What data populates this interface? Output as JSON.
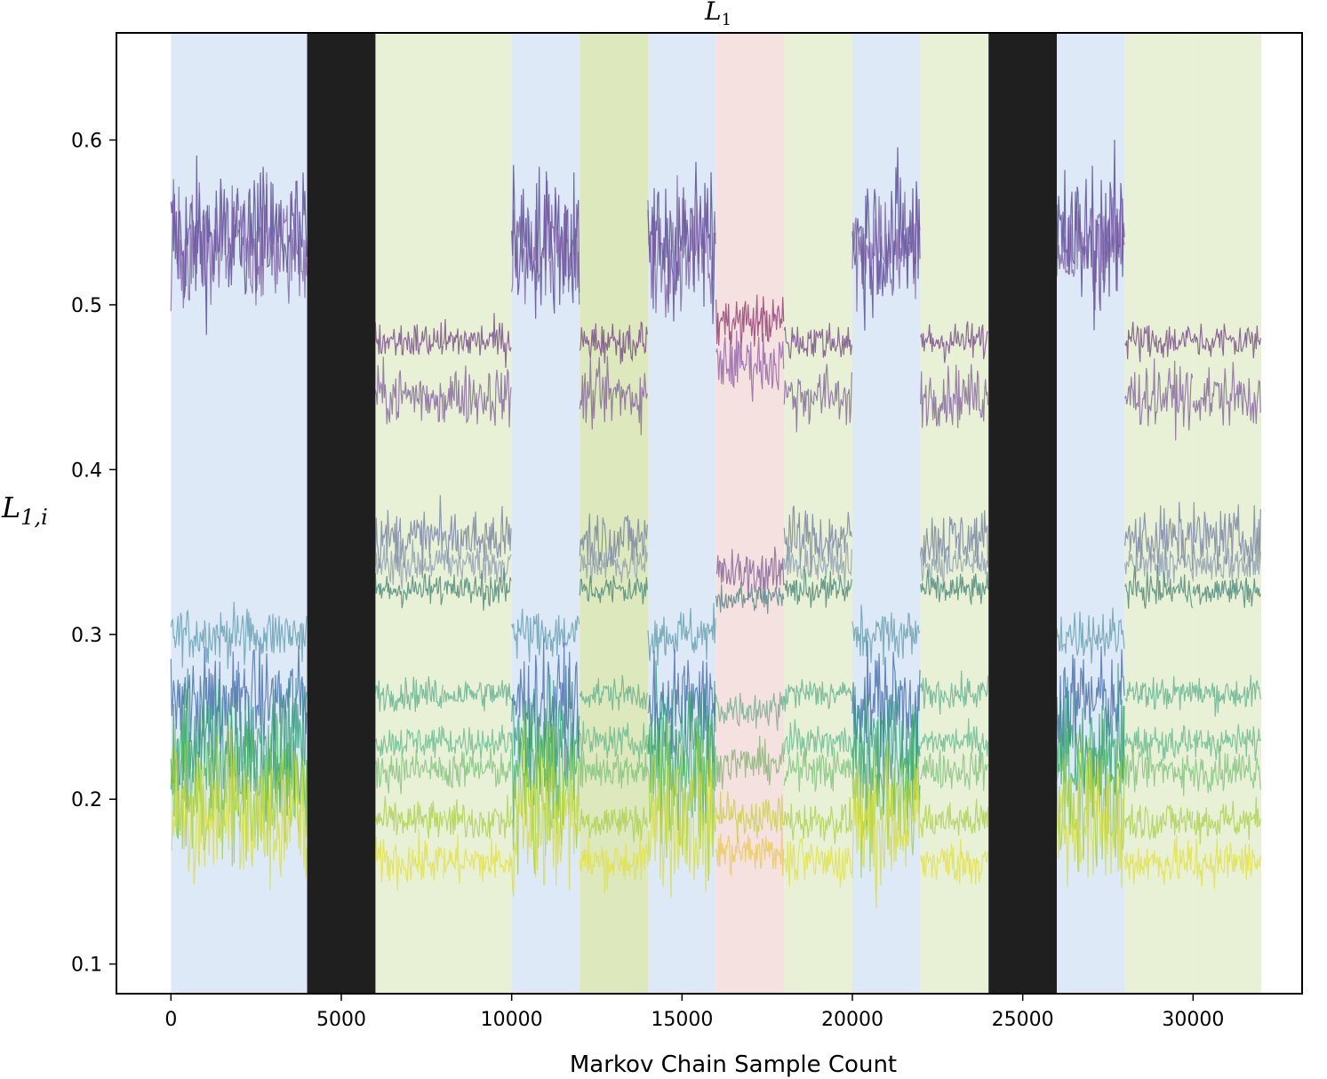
{
  "chart_data": {
    "type": "line",
    "title_main": "L",
    "title_sub": "1",
    "xlabel": "Markov Chain Sample Count",
    "ylabel_main": "L",
    "ylabel_sub": "1,i",
    "xlim": [
      -1600,
      33200
    ],
    "ylim": [
      0.082,
      0.665
    ],
    "xticks": [
      0,
      5000,
      10000,
      15000,
      20000,
      25000,
      30000
    ],
    "xtick_labels": [
      "0",
      "5000",
      "10000",
      "15000",
      "20000",
      "25000",
      "30000"
    ],
    "yticks": [
      0.1,
      0.2,
      0.3,
      0.4,
      0.5,
      0.6
    ],
    "ytick_labels": [
      "0.1",
      "0.2",
      "0.3",
      "0.4",
      "0.5",
      "0.6"
    ],
    "segments": [
      {
        "start": 0,
        "end": 2000,
        "color": "#dde9f7",
        "state": "A"
      },
      {
        "start": 2000,
        "end": 4000,
        "color": "#dde9f7",
        "state": "A"
      },
      {
        "start": 4000,
        "end": 6000,
        "color": "#1f1f1f",
        "state": "gap"
      },
      {
        "start": 6000,
        "end": 8000,
        "color": "#e8f0d6",
        "state": "B"
      },
      {
        "start": 8000,
        "end": 10000,
        "color": "#e8f0d6",
        "state": "B"
      },
      {
        "start": 10000,
        "end": 12000,
        "color": "#dde9f7",
        "state": "A"
      },
      {
        "start": 12000,
        "end": 14000,
        "color": "#dde8bc",
        "state": "B"
      },
      {
        "start": 14000,
        "end": 16000,
        "color": "#dde9f7",
        "state": "A"
      },
      {
        "start": 16000,
        "end": 18000,
        "color": "#f5e1df",
        "state": "C"
      },
      {
        "start": 18000,
        "end": 20000,
        "color": "#e8f0d6",
        "state": "B"
      },
      {
        "start": 20000,
        "end": 22000,
        "color": "#dde9f7",
        "state": "A"
      },
      {
        "start": 22000,
        "end": 24000,
        "color": "#e8f0d6",
        "state": "B"
      },
      {
        "start": 24000,
        "end": 26000,
        "color": "#1f1f1f",
        "state": "gap"
      },
      {
        "start": 26000,
        "end": 28000,
        "color": "#dde9f7",
        "state": "A"
      },
      {
        "start": 28000,
        "end": 30000,
        "color": "#e8f0d6",
        "state": "B"
      },
      {
        "start": 30000,
        "end": 32000,
        "color": "#e8f0d6",
        "state": "B"
      }
    ],
    "states": {
      "A": [
        {
          "mean": 0.54,
          "noise": 0.022,
          "color": "#4b3a8c"
        },
        {
          "mean": 0.535,
          "noise": 0.018,
          "color": "#7a5aa0"
        },
        {
          "mean": 0.3,
          "noise": 0.008,
          "color": "#5d9aab"
        },
        {
          "mean": 0.26,
          "noise": 0.015,
          "color": "#3b64a8"
        },
        {
          "mean": 0.235,
          "noise": 0.018,
          "color": "#2f9a78"
        },
        {
          "mean": 0.22,
          "noise": 0.018,
          "color": "#3fae5e"
        },
        {
          "mean": 0.2,
          "noise": 0.02,
          "color": "#9ccc3a"
        },
        {
          "mean": 0.185,
          "noise": 0.02,
          "color": "#d6dd34"
        }
      ],
      "B": [
        {
          "mean": 0.478,
          "noise": 0.006,
          "color": "#6e3f82"
        },
        {
          "mean": 0.445,
          "noise": 0.009,
          "color": "#7c5c9a"
        },
        {
          "mean": 0.358,
          "noise": 0.009,
          "color": "#6f7b9e"
        },
        {
          "mean": 0.343,
          "noise": 0.006,
          "color": "#8a9ab0"
        },
        {
          "mean": 0.327,
          "noise": 0.005,
          "color": "#3f8073"
        },
        {
          "mean": 0.264,
          "noise": 0.005,
          "color": "#5aad8c"
        },
        {
          "mean": 0.235,
          "noise": 0.005,
          "color": "#5fb88e"
        },
        {
          "mean": 0.218,
          "noise": 0.006,
          "color": "#7cc07a"
        },
        {
          "mean": 0.187,
          "noise": 0.006,
          "color": "#aacf45"
        },
        {
          "mean": 0.162,
          "noise": 0.007,
          "color": "#e1e13a"
        }
      ],
      "C": [
        {
          "mean": 0.49,
          "noise": 0.008,
          "color": "#8a2f6a"
        },
        {
          "mean": 0.465,
          "noise": 0.009,
          "color": "#8b5aa2"
        },
        {
          "mean": 0.337,
          "noise": 0.007,
          "color": "#7c5a90"
        },
        {
          "mean": 0.322,
          "noise": 0.005,
          "color": "#4a7f80"
        },
        {
          "mean": 0.255,
          "noise": 0.006,
          "color": "#6aa88a"
        },
        {
          "mean": 0.222,
          "noise": 0.006,
          "color": "#7fb06e"
        },
        {
          "mean": 0.19,
          "noise": 0.006,
          "color": "#c7cf3e"
        },
        {
          "mean": 0.168,
          "noise": 0.007,
          "color": "#e8c84a"
        }
      ]
    }
  }
}
